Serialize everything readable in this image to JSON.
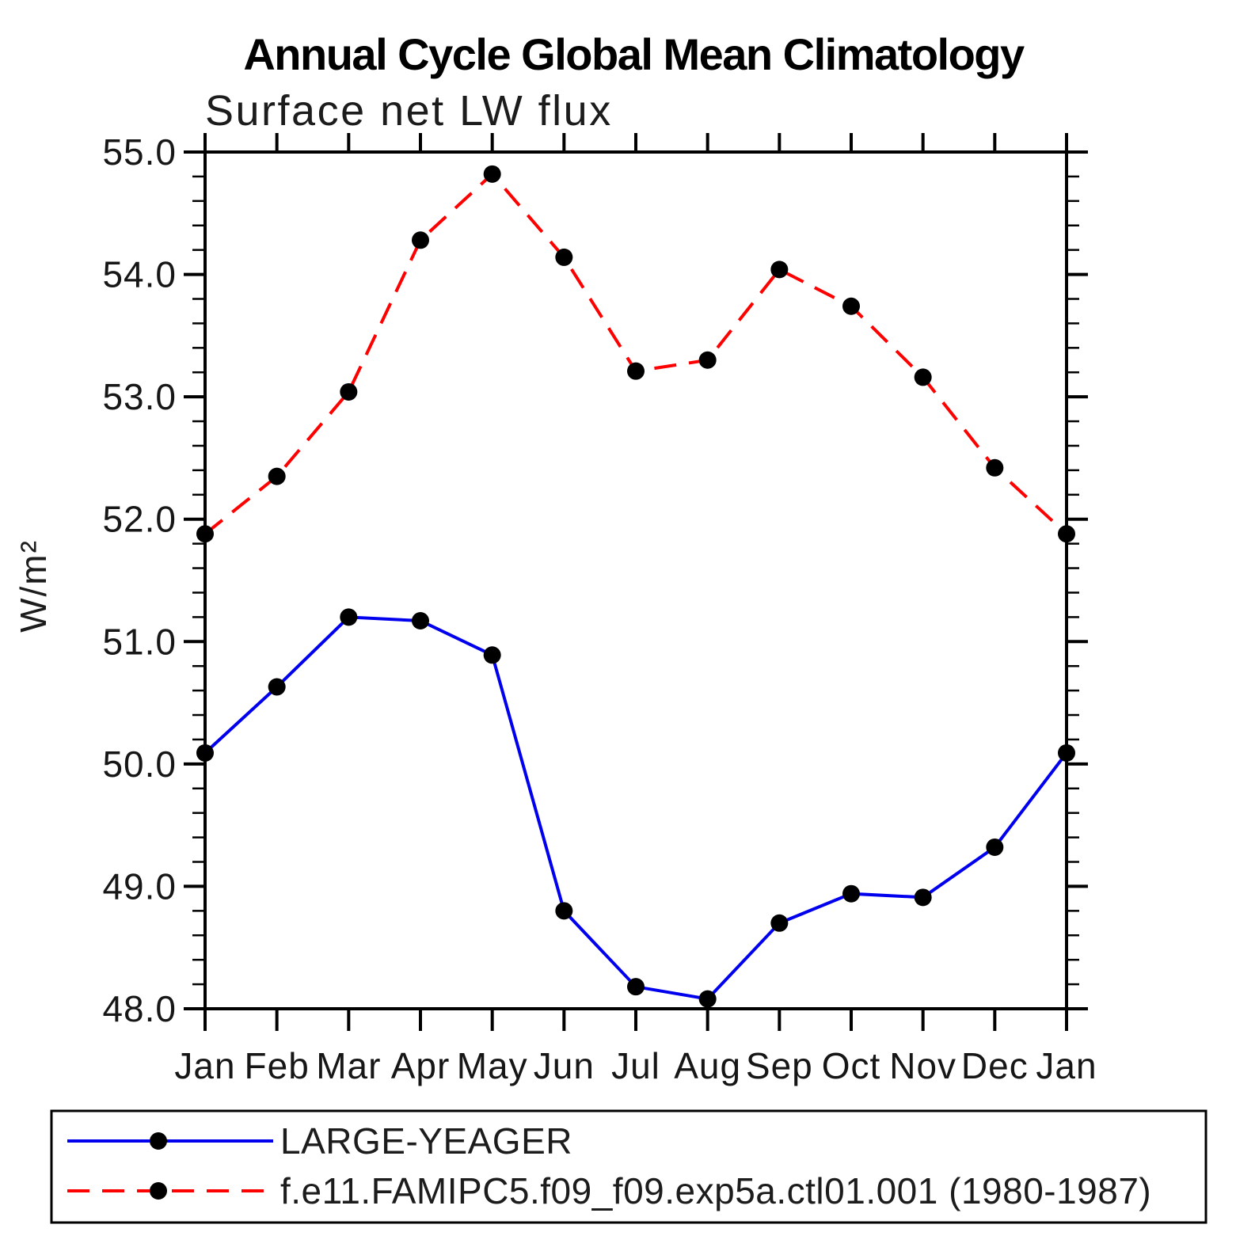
{
  "title": "Annual Cycle Global Mean Climatology",
  "subtitle": "Surface net LW flux",
  "y_axis_label": "W/m²",
  "legend": {
    "items": [
      {
        "label": "LARGE-YEAGER",
        "color": "#0000ee",
        "line_style": "solid",
        "marker": "black-circle"
      },
      {
        "label": "f.e11.FAMIPC5.f09_f09.exp5a.ctl01.001 (1980-1987)",
        "color": "#ff0000",
        "line_style": "dashed",
        "marker": "black-circle"
      }
    ]
  },
  "chart_data": {
    "type": "line",
    "categories": [
      "Jan",
      "Feb",
      "Mar",
      "Apr",
      "May",
      "Jun",
      "Jul",
      "Aug",
      "Sep",
      "Oct",
      "Nov",
      "Dec",
      "Jan"
    ],
    "series": [
      {
        "name": "LARGE-YEAGER",
        "color": "#0000ee",
        "line_style": "solid",
        "marker": "black-circle",
        "values": [
          50.09,
          50.63,
          51.2,
          51.17,
          50.89,
          48.8,
          48.18,
          48.08,
          48.7,
          48.94,
          48.91,
          49.32,
          50.09
        ]
      },
      {
        "name": "f.e11.FAMIPC5.f09_f09.exp5a.ctl01.001 (1980-1987)",
        "color": "#ff0000",
        "line_style": "dashed",
        "marker": "black-circle",
        "values": [
          51.88,
          52.35,
          53.04,
          54.28,
          54.82,
          54.14,
          53.21,
          53.3,
          54.04,
          53.74,
          53.16,
          52.42,
          51.88
        ]
      }
    ],
    "title": "Annual Cycle Global Mean Climatology",
    "subtitle": "Surface net LW flux",
    "xlabel": "",
    "ylabel": "W/m²",
    "ylim": [
      48.0,
      55.0
    ],
    "y_major_tick_step": 1.0,
    "y_minor_tick_step": 0.2,
    "y_tick_labels": [
      "48.0",
      "49.0",
      "50.0",
      "51.0",
      "52.0",
      "53.0",
      "54.0",
      "55.0"
    ],
    "grid": false,
    "legend_position": "bottom-left-box",
    "marker_color": "#000000"
  }
}
